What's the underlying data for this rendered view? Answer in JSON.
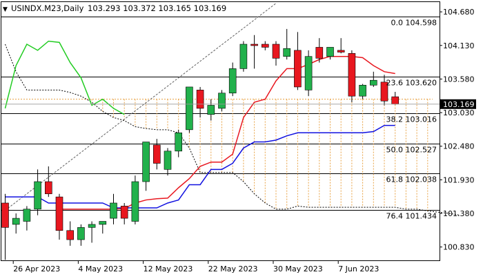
{
  "header": {
    "symbol": "USINDX.M23,Daily",
    "ohlc": "103.293 103.372 103.165 103.169"
  },
  "colors": {
    "bull": "#22b14c",
    "bear": "#e8171f",
    "wick": "#000000",
    "ma_red": "#e8171f",
    "ma_blue": "#1010e0",
    "ma_green": "#22cc22",
    "fib_line": "#000000",
    "cloud": "#e8a040",
    "price_tag_bg": "#000000",
    "price_tag_fg": "#ffffff"
  },
  "chart_data": {
    "type": "candlestick",
    "ylim": [
      100.6,
      104.84
    ],
    "y_ticks": [
      "104.680",
      "104.130",
      "103.580",
      "103.030",
      "102.480",
      "101.930",
      "101.380",
      "100.830"
    ],
    "x_labels": [
      {
        "label": "26 Apr 2023",
        "index": 1
      },
      {
        "label": "4 May 2023",
        "index": 7
      },
      {
        "label": "12 May 2023",
        "index": 13
      },
      {
        "label": "22 May 2023",
        "index": 19
      },
      {
        "label": "30 May 2023",
        "index": 25
      },
      {
        "label": "7 Jun 2023",
        "index": 31
      }
    ],
    "current_price": "103.169",
    "current_value": 103.169,
    "fib_levels": [
      {
        "label": "0.0 104.598",
        "value": 104.598
      },
      {
        "label": "23.6 103.620",
        "value": 103.62
      },
      {
        "label": "38.2 103.016",
        "value": 103.016
      },
      {
        "label": "50.0 102.527",
        "value": 102.527
      },
      {
        "label": "61.8 102.038",
        "value": 102.038
      },
      {
        "label": "76.4 101.434",
        "value": 101.434
      }
    ],
    "candles": [
      {
        "o": 101.55,
        "h": 101.7,
        "l": 100.62,
        "c": 101.15
      },
      {
        "o": 101.2,
        "h": 101.38,
        "l": 101.05,
        "c": 101.3
      },
      {
        "o": 101.25,
        "h": 101.5,
        "l": 101.1,
        "c": 101.45
      },
      {
        "o": 101.45,
        "h": 102.1,
        "l": 101.35,
        "c": 101.9
      },
      {
        "o": 101.9,
        "h": 102.15,
        "l": 101.65,
        "c": 101.7
      },
      {
        "o": 101.65,
        "h": 101.7,
        "l": 100.95,
        "c": 101.1
      },
      {
        "o": 101.1,
        "h": 101.25,
        "l": 100.85,
        "c": 100.95
      },
      {
        "o": 100.95,
        "h": 101.2,
        "l": 100.85,
        "c": 101.15
      },
      {
        "o": 101.15,
        "h": 101.25,
        "l": 100.9,
        "c": 101.2
      },
      {
        "o": 101.2,
        "h": 101.25,
        "l": 101.05,
        "c": 101.25
      },
      {
        "o": 101.3,
        "h": 101.7,
        "l": 101.2,
        "c": 101.55
      },
      {
        "o": 101.5,
        "h": 101.55,
        "l": 101.2,
        "c": 101.3
      },
      {
        "o": 101.25,
        "h": 102.0,
        "l": 101.2,
        "c": 101.9
      },
      {
        "o": 101.9,
        "h": 102.55,
        "l": 101.75,
        "c": 102.55
      },
      {
        "o": 102.5,
        "h": 102.6,
        "l": 102.1,
        "c": 102.2
      },
      {
        "o": 102.1,
        "h": 102.45,
        "l": 102.0,
        "c": 102.4
      },
      {
        "o": 102.4,
        "h": 102.75,
        "l": 102.3,
        "c": 102.7
      },
      {
        "o": 102.75,
        "h": 103.45,
        "l": 102.7,
        "c": 103.45
      },
      {
        "o": 103.4,
        "h": 103.45,
        "l": 102.95,
        "c": 103.1
      },
      {
        "o": 103.0,
        "h": 103.25,
        "l": 102.9,
        "c": 103.15
      },
      {
        "o": 103.1,
        "h": 103.4,
        "l": 103.05,
        "c": 103.35
      },
      {
        "o": 103.35,
        "h": 103.85,
        "l": 103.3,
        "c": 103.75
      },
      {
        "o": 103.75,
        "h": 104.2,
        "l": 103.7,
        "c": 104.15
      },
      {
        "o": 104.15,
        "h": 104.3,
        "l": 103.75,
        "c": 104.13
      },
      {
        "o": 104.15,
        "h": 104.2,
        "l": 104.05,
        "c": 104.1
      },
      {
        "o": 104.15,
        "h": 104.2,
        "l": 103.8,
        "c": 103.92
      },
      {
        "o": 103.95,
        "h": 104.4,
        "l": 103.9,
        "c": 104.08
      },
      {
        "o": 104.05,
        "h": 104.35,
        "l": 103.4,
        "c": 103.45
      },
      {
        "o": 103.4,
        "h": 104.05,
        "l": 103.3,
        "c": 103.95
      },
      {
        "o": 104.1,
        "h": 104.25,
        "l": 103.85,
        "c": 103.92
      },
      {
        "o": 103.95,
        "h": 104.1,
        "l": 103.9,
        "c": 104.1
      },
      {
        "o": 104.05,
        "h": 104.25,
        "l": 104.0,
        "c": 104.02
      },
      {
        "o": 104.0,
        "h": 104.05,
        "l": 103.2,
        "c": 103.3
      },
      {
        "o": 103.3,
        "h": 103.5,
        "l": 103.25,
        "c": 103.48
      },
      {
        "o": 103.48,
        "h": 103.7,
        "l": 103.45,
        "c": 103.56
      },
      {
        "o": 103.53,
        "h": 103.65,
        "l": 103.15,
        "c": 103.22
      },
      {
        "o": 103.29,
        "h": 103.37,
        "l": 103.16,
        "c": 103.17
      }
    ],
    "ma_red": [
      null,
      null,
      null,
      null,
      null,
      101.45,
      101.45,
      101.45,
      101.45,
      101.45,
      101.45,
      101.46,
      101.55,
      101.6,
      101.62,
      101.63,
      101.8,
      101.95,
      102.15,
      102.22,
      102.22,
      102.35,
      102.95,
      103.2,
      103.25,
      103.55,
      103.75,
      103.75,
      103.82,
      103.9,
      103.95,
      103.95,
      103.95,
      103.93,
      103.8,
      103.7,
      103.67
    ],
    "ma_blue": [
      101.65,
      101.65,
      101.65,
      101.65,
      101.55,
      101.55,
      101.55,
      101.55,
      101.55,
      101.55,
      101.47,
      101.47,
      101.47,
      101.47,
      101.47,
      101.55,
      101.6,
      101.85,
      101.85,
      102.1,
      102.1,
      102.2,
      102.45,
      102.55,
      102.55,
      102.58,
      102.65,
      102.7,
      102.7,
      102.7,
      102.7,
      102.7,
      102.7,
      102.7,
      102.72,
      102.82,
      102.82
    ],
    "ma_green": [
      103.1,
      103.8,
      104.15,
      104.05,
      104.2,
      104.18,
      103.85,
      103.6,
      103.15,
      103.25,
      103.1,
      103.0
    ],
    "span_b": [
      104.15,
      103.7,
      103.4,
      103.4,
      103.4,
      103.4,
      103.36,
      103.3,
      103.2,
      103.05,
      102.95,
      102.9,
      102.8,
      102.77,
      102.75,
      102.75,
      102.7,
      102.45,
      102.05,
      102.05,
      102.05,
      102.05,
      101.9,
      101.7,
      101.55,
      101.45,
      101.45,
      101.5,
      101.48,
      101.48,
      101.48,
      101.48,
      101.48,
      101.48,
      101.48,
      101.48,
      101.48,
      101.45,
      101.45,
      101.42,
      101.4,
      101.38,
      101.35
    ],
    "diag": {
      "from": [
        0,
        101.43
      ],
      "to": [
        25,
        104.82
      ]
    }
  }
}
